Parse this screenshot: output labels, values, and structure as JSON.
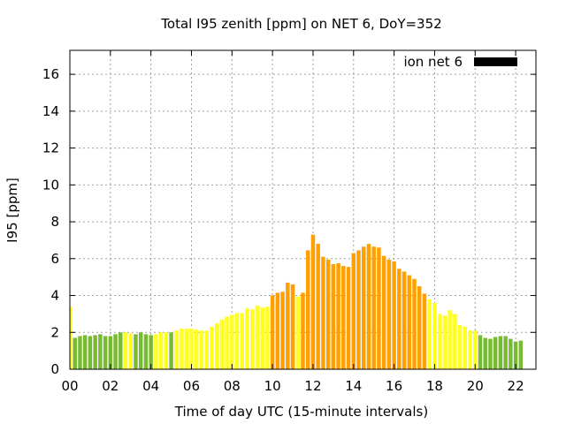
{
  "chart_data": {
    "type": "bar",
    "title": "Total I95 zenith [ppm] on NET 6, DoY=352",
    "xlabel": "Time of day UTC (15-minute intervals)",
    "ylabel": "I95 [ppm]",
    "xlim": [
      0,
      23
    ],
    "ylim": [
      0,
      17.3
    ],
    "xticks": [
      "00",
      "02",
      "04",
      "06",
      "08",
      "10",
      "12",
      "14",
      "16",
      "18",
      "20",
      "22"
    ],
    "yticks": [
      "0",
      "2",
      "4",
      "6",
      "8",
      "10",
      "12",
      "14",
      "16"
    ],
    "grid": true,
    "legend": {
      "position": "top-right",
      "label": "ion net 6",
      "color": "#000000"
    },
    "interval_hours": 0.25,
    "colors": {
      "green": "#77bb33",
      "yellow": "#ffff22",
      "orange": "#ff9f00"
    },
    "values": [
      3.4,
      1.7,
      1.8,
      1.85,
      1.8,
      1.85,
      1.9,
      1.8,
      1.8,
      1.9,
      2.0,
      2.0,
      1.95,
      1.9,
      2.0,
      1.9,
      1.85,
      1.9,
      2.0,
      2.0,
      2.0,
      2.1,
      2.2,
      2.2,
      2.2,
      2.15,
      2.1,
      2.1,
      2.3,
      2.5,
      2.7,
      2.85,
      2.95,
      3.05,
      3.05,
      3.3,
      3.25,
      3.45,
      3.35,
      3.4,
      4.0,
      4.15,
      4.2,
      4.7,
      4.6,
      3.95,
      4.15,
      6.45,
      7.3,
      6.8,
      6.1,
      5.95,
      5.7,
      5.75,
      5.6,
      5.55,
      6.3,
      6.45,
      6.65,
      6.8,
      6.65,
      6.6,
      6.15,
      5.95,
      5.85,
      5.45,
      5.3,
      5.1,
      4.9,
      4.5,
      4.1,
      3.8,
      3.6,
      3.0,
      2.9,
      3.2,
      3.0,
      2.4,
      2.3,
      2.1,
      2.1,
      1.85,
      1.7,
      1.65,
      1.75,
      1.8,
      1.8,
      1.65,
      1.5,
      1.55
    ],
    "bar_colors": [
      "yellow",
      "green",
      "green",
      "green",
      "green",
      "green",
      "green",
      "green",
      "green",
      "green",
      "green",
      "yellow",
      "yellow",
      "green",
      "green",
      "green",
      "green",
      "yellow",
      "yellow",
      "yellow",
      "green",
      "yellow",
      "yellow",
      "yellow",
      "yellow",
      "yellow",
      "yellow",
      "yellow",
      "yellow",
      "yellow",
      "yellow",
      "yellow",
      "yellow",
      "yellow",
      "yellow",
      "yellow",
      "yellow",
      "yellow",
      "yellow",
      "yellow",
      "orange",
      "orange",
      "orange",
      "orange",
      "orange",
      "yellow",
      "orange",
      "orange",
      "orange",
      "orange",
      "orange",
      "orange",
      "orange",
      "orange",
      "orange",
      "orange",
      "orange",
      "orange",
      "orange",
      "orange",
      "orange",
      "orange",
      "orange",
      "orange",
      "orange",
      "orange",
      "orange",
      "orange",
      "orange",
      "orange",
      "orange",
      "yellow",
      "yellow",
      "yellow",
      "yellow",
      "yellow",
      "yellow",
      "yellow",
      "yellow",
      "yellow",
      "yellow",
      "green",
      "green",
      "green",
      "green",
      "green",
      "green",
      "green",
      "green",
      "green"
    ]
  }
}
